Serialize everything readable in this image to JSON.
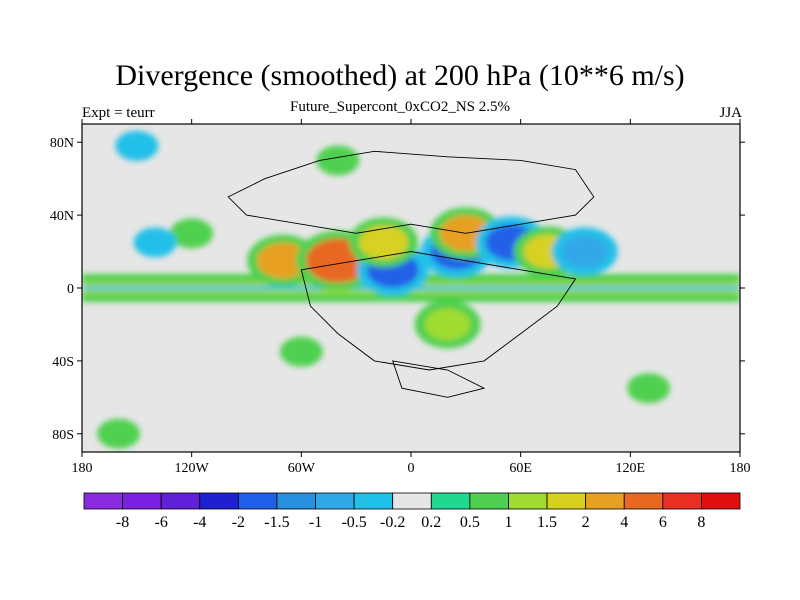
{
  "title": "Divergence (smoothed) at 200 hPa (10**6 m/s)",
  "subtitle": "Future_Supercont_0xCO2_NS 2.5%",
  "left_label": "Expt = teurr",
  "right_label": "JJA",
  "chart_data": {
    "type": "heatmap",
    "title": "Divergence (smoothed) at 200 hPa (10**6 m/s)",
    "x_range": [
      -180,
      180
    ],
    "y_range": [
      -90,
      90
    ],
    "lon_ticks": [
      {
        "value": -180,
        "label": "180"
      },
      {
        "value": -120,
        "label": "120W"
      },
      {
        "value": -60,
        "label": "60W"
      },
      {
        "value": 0,
        "label": "0"
      },
      {
        "value": 60,
        "label": "60E"
      },
      {
        "value": 120,
        "label": "120E"
      },
      {
        "value": 180,
        "label": "180"
      }
    ],
    "lat_ticks": [
      {
        "value": 80,
        "label": "80N"
      },
      {
        "value": 40,
        "label": "40N"
      },
      {
        "value": 0,
        "label": "0"
      },
      {
        "value": -40,
        "label": "40S"
      },
      {
        "value": -80,
        "label": "80S"
      }
    ],
    "colorbar": {
      "colors": [
        "#8a2be2",
        "#7b1fe0",
        "#6020d8",
        "#2020d0",
        "#2060e8",
        "#2890e0",
        "#30a8e8",
        "#20c0e8",
        "#e6e6e6",
        "#20d890",
        "#50d050",
        "#a0dc30",
        "#d8d020",
        "#e8a020",
        "#e86820",
        "#e83020",
        "#e01010"
      ],
      "labels": [
        "-8",
        "-6",
        "-4",
        "-2",
        "-1.5",
        "-1",
        "-0.5",
        "-0.2",
        "0.2",
        "0.5",
        "1",
        "1.5",
        "2",
        "4",
        "6",
        "8"
      ]
    },
    "features": [
      {
        "kind": "band",
        "lat": 0,
        "lon_range": [
          -180,
          180
        ],
        "level": 0.5,
        "note": "equatorial band"
      },
      {
        "kind": "blob",
        "lon": -40,
        "lat": 70,
        "level": 0.5
      },
      {
        "kind": "blob",
        "lon": -150,
        "lat": 78,
        "level": -0.5
      },
      {
        "kind": "blob",
        "lon": -120,
        "lat": 30,
        "level": 0.5
      },
      {
        "kind": "blob",
        "lon": -140,
        "lat": 25,
        "level": -0.5
      },
      {
        "kind": "blob",
        "lon": -70,
        "lat": 15,
        "level": 2
      },
      {
        "kind": "blob",
        "lon": -40,
        "lat": 15,
        "level": 4
      },
      {
        "kind": "blob",
        "lon": -10,
        "lat": 10,
        "level": -2
      },
      {
        "kind": "blob",
        "lon": -15,
        "lat": 25,
        "level": 1.5
      },
      {
        "kind": "blob",
        "lon": 25,
        "lat": 20,
        "level": -2
      },
      {
        "kind": "blob",
        "lon": 30,
        "lat": 30,
        "level": 2
      },
      {
        "kind": "blob",
        "lon": 55,
        "lat": 25,
        "level": -2
      },
      {
        "kind": "blob",
        "lon": 75,
        "lat": 20,
        "level": 1.5
      },
      {
        "kind": "blob",
        "lon": 95,
        "lat": 20,
        "level": -1
      },
      {
        "kind": "blob",
        "lon": 20,
        "lat": -20,
        "level": 1
      },
      {
        "kind": "blob",
        "lon": -60,
        "lat": -35,
        "level": 0.5
      },
      {
        "kind": "blob",
        "lon": 130,
        "lat": -55,
        "level": 0.5
      },
      {
        "kind": "blob",
        "lon": -160,
        "lat": -80,
        "level": 0.5
      }
    ]
  }
}
